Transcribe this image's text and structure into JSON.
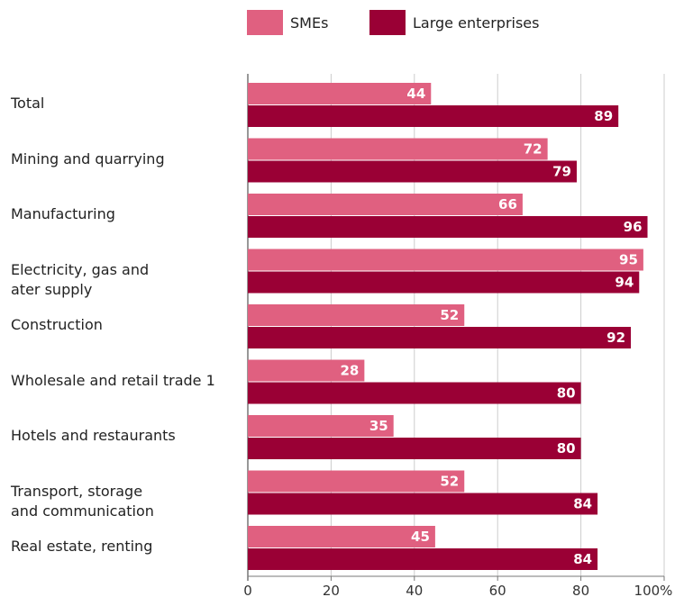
{
  "colors": {
    "smes": "#e06080",
    "large": "#9a0035",
    "grid": "#cccccc",
    "axis": "#777777"
  },
  "legend": {
    "smes": "SMEs",
    "large": "Large enterprises"
  },
  "chart_data": {
    "type": "bar",
    "orientation": "horizontal",
    "categories": [
      "Total",
      "Mining and quarrying",
      "Manufacturing",
      "Electricity, gas and\nater supply",
      "Construction",
      "Wholesale and retail trade 1",
      "Hotels and restaurants",
      "Transport, storage\nand communication",
      "Real estate, renting"
    ],
    "series": [
      {
        "name": "SMEs",
        "values": [
          44,
          72,
          66,
          95,
          52,
          28,
          35,
          52,
          45
        ]
      },
      {
        "name": "Large enterprises",
        "values": [
          89,
          79,
          96,
          94,
          92,
          80,
          80,
          84,
          84
        ]
      }
    ],
    "xticks": [
      "0",
      "20",
      "40",
      "60",
      "80",
      "100%"
    ],
    "xlim": [
      0,
      100
    ],
    "grid": true,
    "legend_position": "top"
  }
}
